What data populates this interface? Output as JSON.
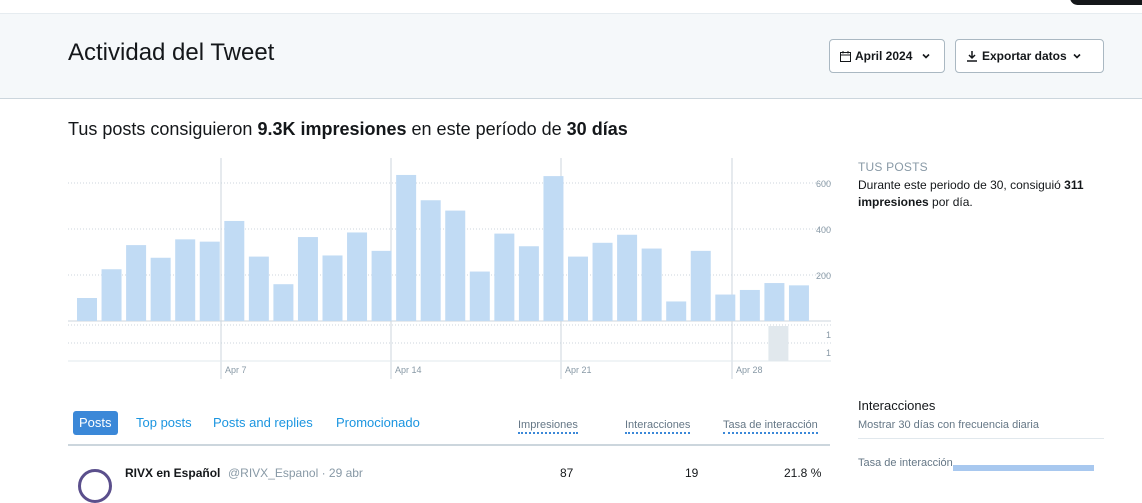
{
  "header": {
    "title": "Actividad del Tweet",
    "date_button": "April 2024",
    "export_button": "Exportar datos"
  },
  "summary": {
    "prefix": "Tus posts consiguieron",
    "impressions": "9.3K impresiones",
    "middle": "en este período de",
    "period": "30 días"
  },
  "side": {
    "label": "TUS POSTS",
    "text_prefix": "Durante este periodo de 30, consiguió",
    "text_bold": "311 impresiones",
    "text_suffix": "por día."
  },
  "chart_data": {
    "type": "bar",
    "categories": [
      "Apr 1",
      "Apr 2",
      "Apr 3",
      "Apr 4",
      "Apr 5",
      "Apr 6",
      "Apr 7",
      "Apr 8",
      "Apr 9",
      "Apr 10",
      "Apr 11",
      "Apr 12",
      "Apr 13",
      "Apr 14",
      "Apr 15",
      "Apr 16",
      "Apr 17",
      "Apr 18",
      "Apr 19",
      "Apr 20",
      "Apr 21",
      "Apr 22",
      "Apr 23",
      "Apr 24",
      "Apr 25",
      "Apr 26",
      "Apr 27",
      "Apr 28",
      "Apr 29",
      "Apr 30"
    ],
    "values": [
      100,
      225,
      330,
      275,
      355,
      345,
      435,
      280,
      160,
      365,
      285,
      385,
      305,
      635,
      525,
      480,
      215,
      380,
      325,
      630,
      280,
      340,
      375,
      315,
      85,
      305,
      115,
      135,
      165,
      155
    ],
    "ylim": [
      0,
      700
    ],
    "yticks": [
      "600",
      "400",
      "200"
    ],
    "xtick_labels": [
      "Apr 7",
      "Apr 14",
      "Apr 21",
      "Apr 28"
    ],
    "secondary": {
      "values": [
        0,
        0,
        0,
        0,
        0,
        0,
        0,
        0,
        0,
        0,
        0,
        0,
        0,
        0,
        0,
        0,
        0,
        0,
        0,
        0,
        0,
        0,
        0,
        0,
        0,
        0,
        0,
        0,
        1,
        0
      ],
      "yticks": [
        "1",
        "1"
      ]
    }
  },
  "tabs": {
    "items": [
      "Posts",
      "Top posts",
      "Posts and replies",
      "Promocionado"
    ],
    "columns": [
      "Impresiones",
      "Interacciones",
      "Tasa de interacción"
    ]
  },
  "row": {
    "name": "RIVX en Español",
    "handle": "@RIVX_Espanol · 29 abr",
    "impressions": "87",
    "interactions": "19",
    "rate": "21.8 %"
  },
  "interactions": {
    "title": "Interacciones",
    "subtitle": "Mostrar 30 días con frecuencia diaria",
    "rate_label": "Tasa de interacción"
  }
}
